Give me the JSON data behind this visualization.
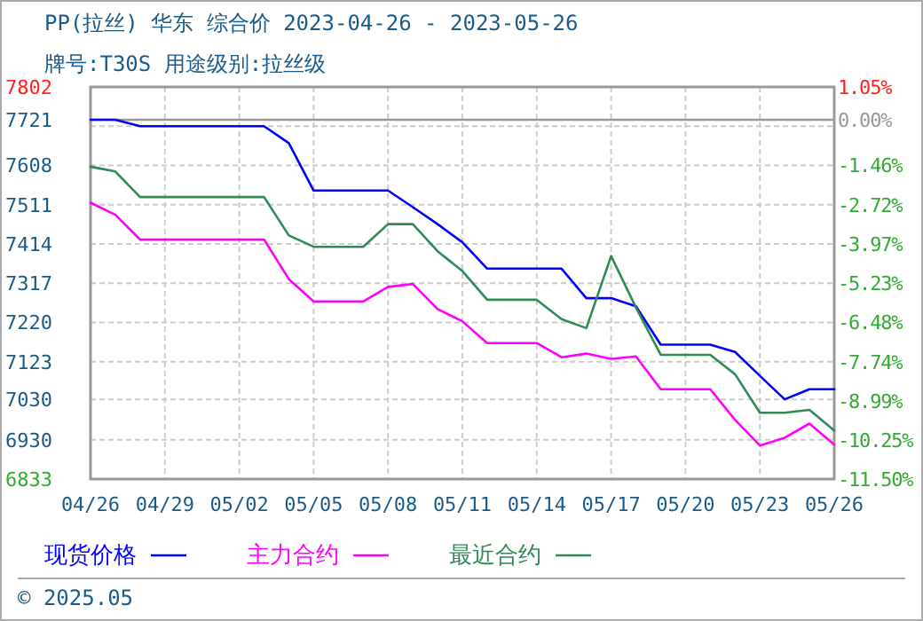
{
  "chart_data": {
    "type": "line",
    "title": "PP(拉丝) 华东 综合价 2023-04-26 - 2023-05-26",
    "subtitle": "牌号:T30S 用途级别:拉丝级",
    "xlim": [
      "2023-04-26",
      "2023-05-26"
    ],
    "xticks": [
      {
        "value": "2023-04-26",
        "label": "04/26"
      },
      {
        "value": "2023-04-29",
        "label": "04/29"
      },
      {
        "value": "2023-05-02",
        "label": "05/02"
      },
      {
        "value": "2023-05-05",
        "label": "05/05"
      },
      {
        "value": "2023-05-08",
        "label": "05/08"
      },
      {
        "value": "2023-05-11",
        "label": "05/11"
      },
      {
        "value": "2023-05-14",
        "label": "05/14"
      },
      {
        "value": "2023-05-17",
        "label": "05/17"
      },
      {
        "value": "2023-05-20",
        "label": "05/20"
      },
      {
        "value": "2023-05-23",
        "label": "05/23"
      },
      {
        "value": "2023-05-26",
        "label": "05/26"
      }
    ],
    "ylim": [
      6833,
      7802
    ],
    "yticks": [
      7802,
      7721,
      {
        "value": 7705,
        "label": null
      },
      7608,
      7511,
      7414,
      7317,
      7220,
      7123,
      7030,
      6930,
      6833
    ],
    "y2lim": [
      -11.5,
      1.05
    ],
    "y2ticks": [
      {
        "value": 1.05,
        "label": "1.05%"
      },
      {
        "value": 0,
        "label": "0.00%"
      },
      {
        "value": -1.46,
        "label": "-1.46%"
      },
      {
        "value": -2.72,
        "label": "-2.72%"
      },
      {
        "value": -3.97,
        "label": "-3.97%"
      },
      {
        "value": -5.23,
        "label": "-5.23%"
      },
      {
        "value": -6.48,
        "label": "-6.48%"
      },
      {
        "value": -7.74,
        "label": "-7.74%"
      },
      {
        "value": -8.99,
        "label": "-8.99%"
      },
      {
        "value": -10.25,
        "label": "-10.25%"
      },
      {
        "value": -11.5,
        "label": "-11.50%"
      }
    ],
    "grid": true,
    "legend": "bottom",
    "marker": "none",
    "line_style": "solid",
    "ref_lines": [
      {
        "axis": "y",
        "value": 7721,
        "color": "#999999"
      }
    ],
    "x": [
      "2023-04-26",
      "2023-04-27",
      "2023-04-28",
      "2023-04-29",
      "2023-04-30",
      "2023-05-01",
      "2023-05-02",
      "2023-05-03",
      "2023-05-04",
      "2023-05-05",
      "2023-05-06",
      "2023-05-07",
      "2023-05-08",
      "2023-05-09",
      "2023-05-10",
      "2023-05-11",
      "2023-05-12",
      "2023-05-13",
      "2023-05-14",
      "2023-05-15",
      "2023-05-16",
      "2023-05-17",
      "2023-05-18",
      "2023-05-19",
      "2023-05-20",
      "2023-05-21",
      "2023-05-22",
      "2023-05-23",
      "2023-05-24",
      "2023-05-25",
      "2023-05-26"
    ],
    "series": [
      {
        "name": "现货价格",
        "color": "#0000ff",
        "values": [
          7721,
          7721,
          7705,
          7705,
          7705,
          7705,
          7705,
          7705,
          7663,
          7546,
          7546,
          7546,
          7546,
          7505,
          7463,
          7418,
          7353,
          7353,
          7353,
          7353,
          7280,
          7280,
          7260,
          7165,
          7165,
          7165,
          7147,
          7088,
          7030,
          7055,
          7055
        ]
      },
      {
        "name": "主力合约",
        "color": "#ff00ff",
        "values": [
          7516,
          7486,
          7425,
          7425,
          7425,
          7425,
          7425,
          7425,
          7327,
          7272,
          7272,
          7272,
          7308,
          7315,
          7253,
          7223,
          7169,
          7169,
          7169,
          7134,
          7143,
          7130,
          7136,
          7055,
          7055,
          7055,
          6979,
          6916,
          6935,
          6970,
          6918
        ]
      },
      {
        "name": "最近合约",
        "color": "#2e8b57",
        "values": [
          7605,
          7593,
          7530,
          7530,
          7530,
          7530,
          7530,
          7530,
          7435,
          7407,
          7407,
          7407,
          7463,
          7463,
          7396,
          7347,
          7276,
          7276,
          7276,
          7228,
          7206,
          7384,
          7257,
          7140,
          7140,
          7140,
          7092,
          6997,
          6997,
          7004,
          6953
        ]
      }
    ],
    "annotations": [
      "© 2025.05"
    ]
  }
}
